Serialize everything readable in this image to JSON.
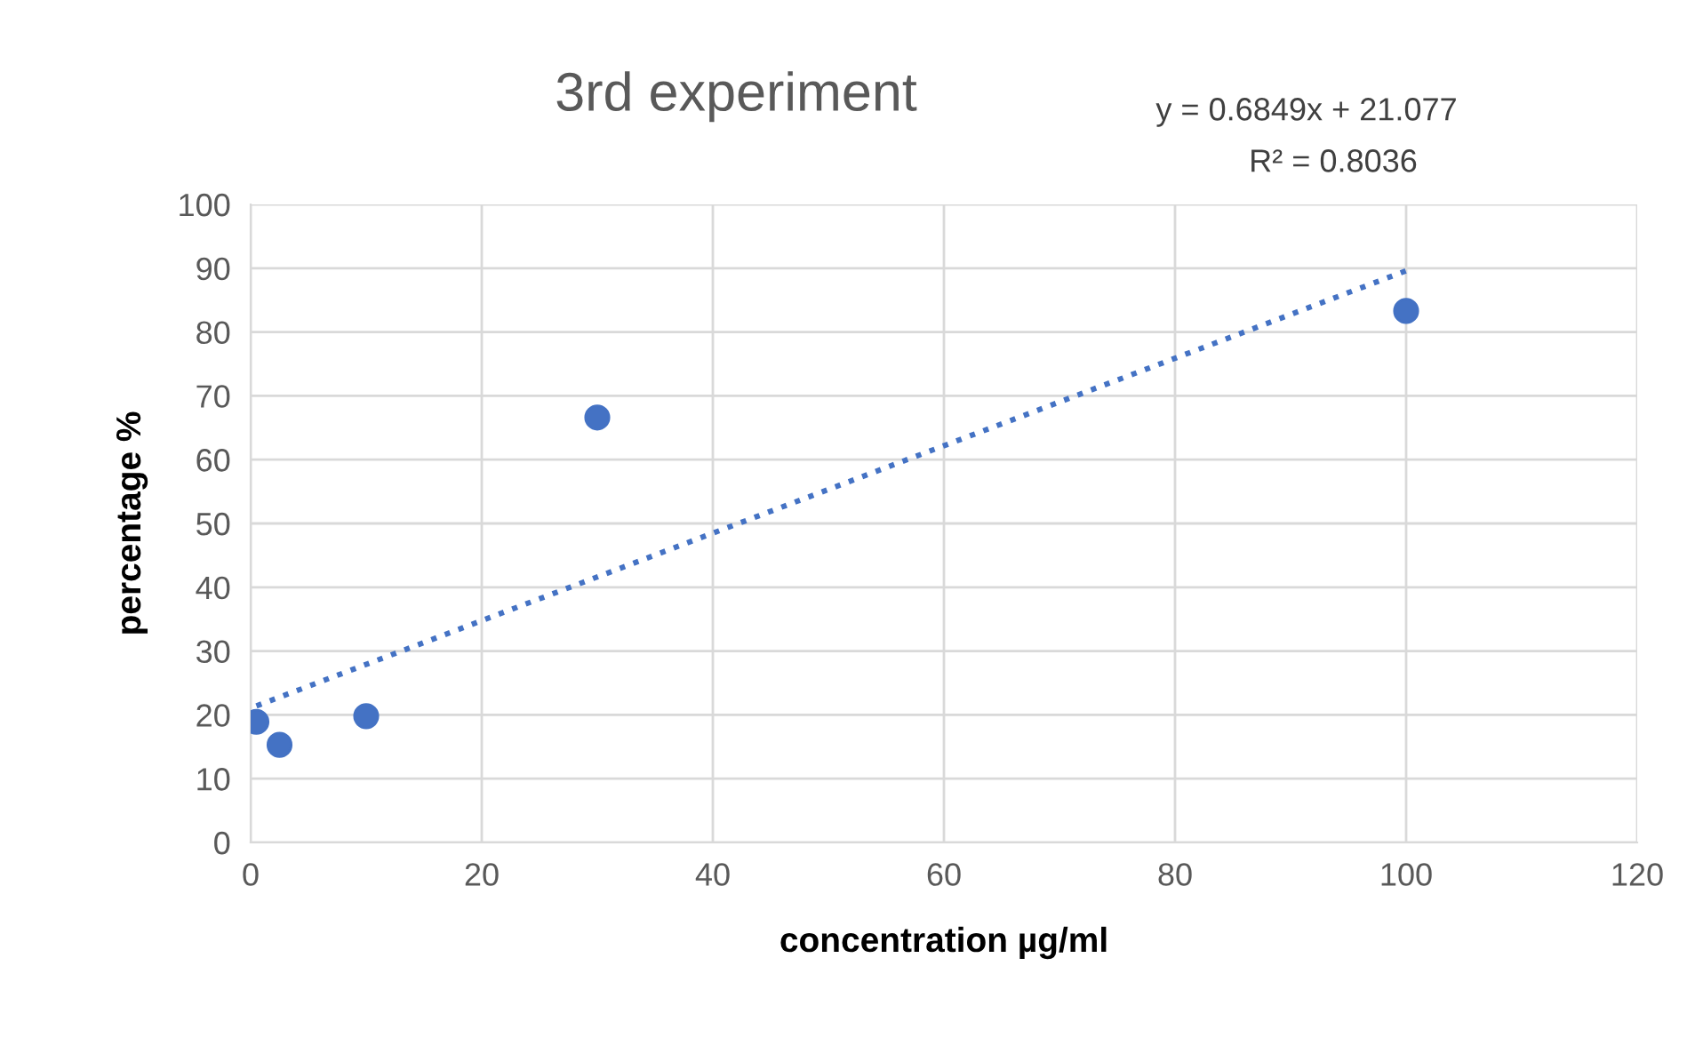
{
  "chart_data": {
    "type": "scatter",
    "title": "3rd experiment",
    "xlabel": "concentration µg/ml",
    "ylabel": "percentage %",
    "series": [
      {
        "color": "#4472c4",
        "x": [
          0.5,
          2.5,
          10,
          30,
          100
        ],
        "values": [
          18.9,
          15.3,
          19.8,
          66.6,
          83.3
        ],
        "marker": "circle"
      },
      {
        "type": "line",
        "color": "#4472c4",
        "x": [
          0.5,
          100
        ],
        "values": [
          21.4,
          89.6
        ],
        "line_style": "dotted",
        "marker": "none"
      }
    ],
    "annotations": [
      "y = 0.6849x + 21.077",
      "R² = 0.8036"
    ],
    "xlim": [
      0,
      120
    ],
    "xticks": [
      0,
      20,
      40,
      60,
      80,
      100,
      120
    ],
    "ylim": [
      0,
      100
    ],
    "yticks": [
      0,
      10,
      20,
      30,
      40,
      50,
      60,
      70,
      80,
      90,
      100
    ],
    "grid": true,
    "legend": false
  }
}
